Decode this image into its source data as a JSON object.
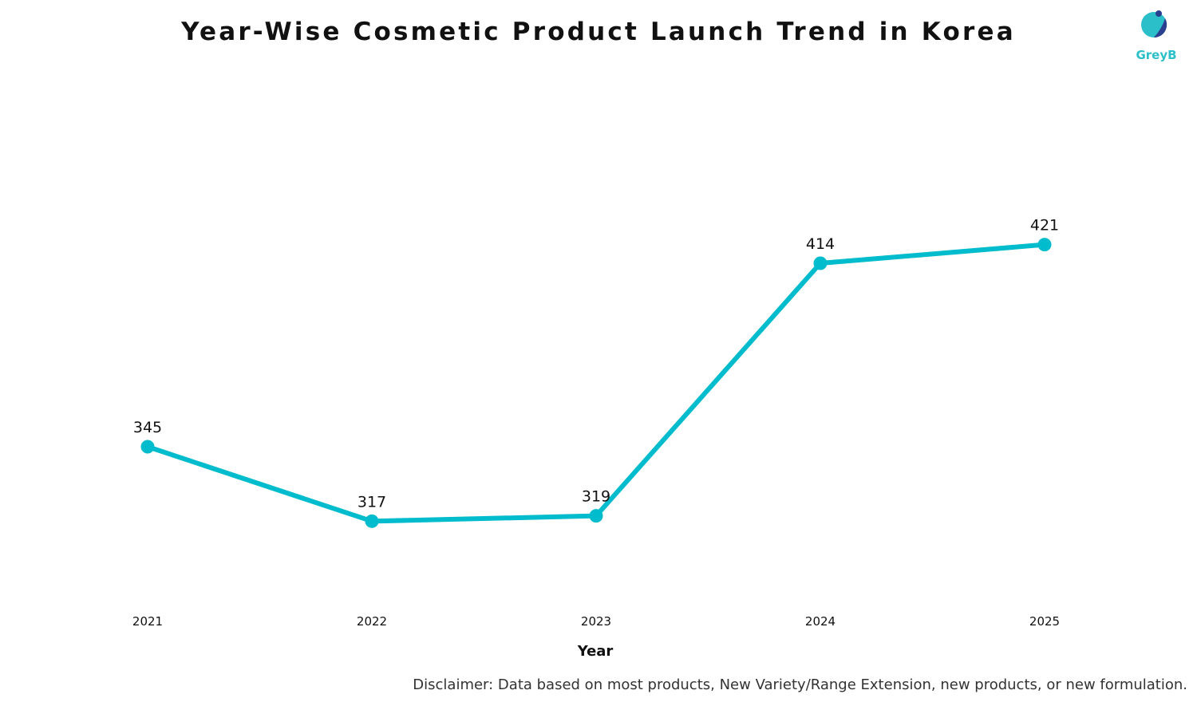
{
  "brand": {
    "name": "GreyB",
    "accent_color": "#2bbfca",
    "dark_color": "#2a3f8f"
  },
  "disclaimer": "Disclaimer: Data based on most products, New Variety/Range Extension, new products, or new formulation.",
  "chart_data": {
    "type": "line",
    "title": "Year-Wise Cosmetic Product Launch Trend in Korea",
    "xlabel": "Year",
    "ylabel": "",
    "categories": [
      "2021",
      "2022",
      "2023",
      "2024",
      "2025"
    ],
    "series": [
      {
        "values": [
          345,
          317,
          319,
          414,
          421
        ],
        "color": "#00bccc"
      }
    ],
    "ylim": [
      291,
      471
    ],
    "grid": false,
    "legend": "none",
    "data_labels": true
  }
}
